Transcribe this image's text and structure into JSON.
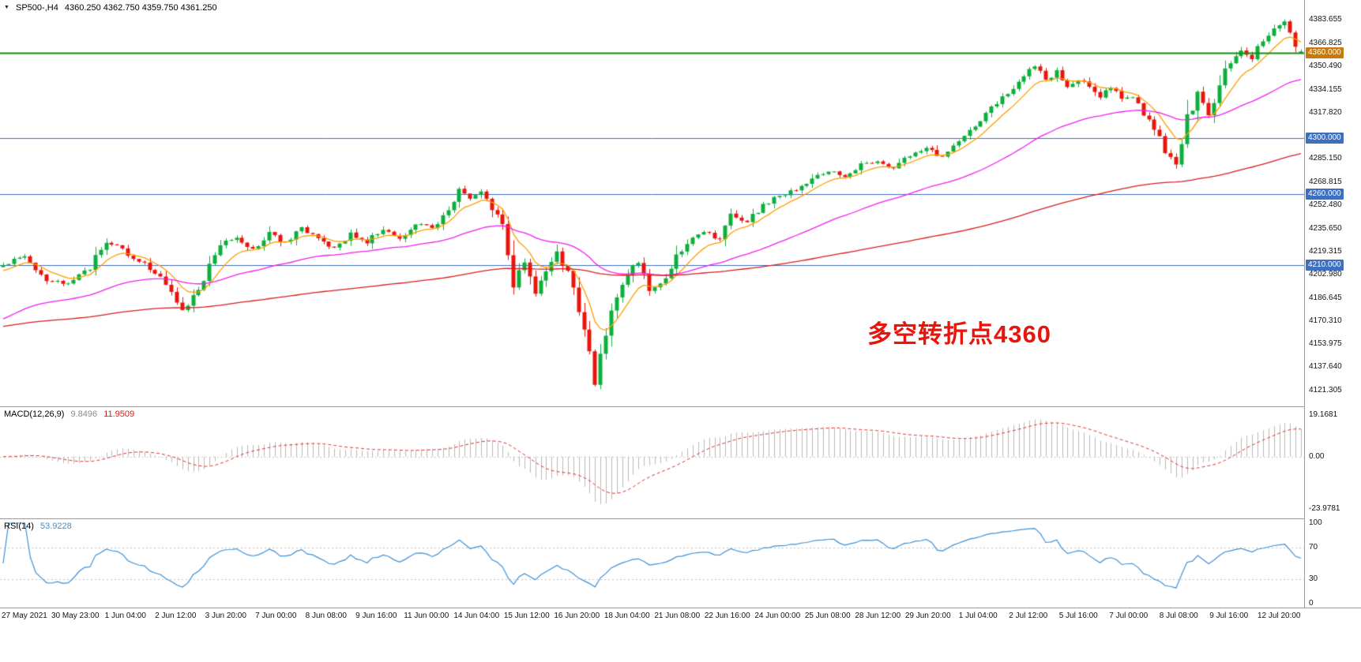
{
  "header": {
    "symbol": "SP500-,H4",
    "ohlc": "4360.250 4362.750 4359.750 4361.250"
  },
  "annotation": {
    "text": "多空转折点4360",
    "color": "#e8150d"
  },
  "price_axis": {
    "ticks": [
      {
        "text": "4383.655",
        "price": 4383.655
      },
      {
        "text": "4366.825",
        "price": 4366.825
      },
      {
        "text": "4350.490",
        "price": 4350.49
      },
      {
        "text": "4334.155",
        "price": 4334.155
      },
      {
        "text": "4317.820",
        "price": 4317.82
      },
      {
        "text": "4285.150",
        "price": 4285.15
      },
      {
        "text": "4268.815",
        "price": 4268.815
      },
      {
        "text": "4252.480",
        "price": 4252.48
      },
      {
        "text": "4235.650",
        "price": 4235.65
      },
      {
        "text": "4219.315",
        "price": 4219.315
      },
      {
        "text": "4202.980",
        "price": 4202.98
      },
      {
        "text": "4186.645",
        "price": 4186.645
      },
      {
        "text": "4170.310",
        "price": 4170.31
      },
      {
        "text": "4153.975",
        "price": 4153.975
      },
      {
        "text": "4137.640",
        "price": 4137.64
      },
      {
        "text": "4121.305",
        "price": 4121.305
      }
    ],
    "tags": [
      {
        "text": "4360.000",
        "price": 4360.0,
        "bg": "#c7790b"
      },
      {
        "text": "4300.000",
        "price": 4300.0,
        "bg": "#3f6fbf"
      },
      {
        "text": "4260.000",
        "price": 4260.0,
        "bg": "#3f6fbf"
      },
      {
        "text": "4210.000",
        "price": 4210.0,
        "bg": "#3f6fbf"
      }
    ]
  },
  "macd_panel": {
    "label": "MACD(12,26,9)",
    "value1": "9.8496",
    "value2": "11.9509",
    "ticks": [
      {
        "text": "19.1681",
        "value": 19.1681
      },
      {
        "text": "0.00",
        "value": 0
      },
      {
        "text": "-23.9781",
        "value": -23.9781
      }
    ]
  },
  "rsi_panel": {
    "label": "RSI(14)",
    "value": "53.9228",
    "ticks": [
      {
        "text": "100",
        "value": 100
      },
      {
        "text": "70",
        "value": 70
      },
      {
        "text": "30",
        "value": 30
      },
      {
        "text": "0",
        "value": 0
      }
    ]
  },
  "time_axis": {
    "labels": [
      "27 May 2021",
      "30 May 23:00",
      "1 Jun 04:00",
      "2 Jun 12:00",
      "3 Jun 20:00",
      "7 Jun 00:00",
      "8 Jun 08:00",
      "9 Jun 16:00",
      "11 Jun 00:00",
      "14 Jun 04:00",
      "15 Jun 12:00",
      "16 Jun 20:00",
      "18 Jun 04:00",
      "21 Jun 08:00",
      "22 Jun 16:00",
      "24 Jun 00:00",
      "25 Jun 08:00",
      "28 Jun 12:00",
      "29 Jun 20:00",
      "1 Jul 04:00",
      "2 Jul 12:00",
      "5 Jul 16:00",
      "7 Jul 00:00",
      "8 Jul 08:00",
      "9 Jul 16:00",
      "12 Jul 20:00"
    ]
  },
  "chart_data": {
    "type": "candlestick",
    "symbol": "SP500-",
    "timeframe": "H4",
    "title": "SP500-,H4 4360.250 4362.750 4359.750 4361.250",
    "bars": 240,
    "y_range": [
      4111,
      4396
    ],
    "current_ohlc": {
      "open": 4360.25,
      "high": 4362.75,
      "low": 4359.75,
      "close": 4361.25
    },
    "up_color": "#0caf3c",
    "down_color": "#e8150d",
    "horizontal_levels": [
      {
        "price": 4360.0,
        "color": "#0e8f0e",
        "width": 2
      },
      {
        "price": 4300.0,
        "color": "#3f6fbf",
        "width": 1
      },
      {
        "price": 4260.0,
        "color": "#3f6fbf",
        "width": 1
      },
      {
        "price": 4210.0,
        "color": "#3f6fbf",
        "width": 1
      }
    ],
    "close_path_anchors": [
      [
        0,
        4210
      ],
      [
        4,
        4216
      ],
      [
        8,
        4200
      ],
      [
        12,
        4197
      ],
      [
        16,
        4208
      ],
      [
        19,
        4228
      ],
      [
        23,
        4218
      ],
      [
        27,
        4208
      ],
      [
        30,
        4197
      ],
      [
        33,
        4176
      ],
      [
        36,
        4192
      ],
      [
        40,
        4226
      ],
      [
        43,
        4229
      ],
      [
        46,
        4221
      ],
      [
        49,
        4232
      ],
      [
        52,
        4226
      ],
      [
        55,
        4236
      ],
      [
        58,
        4228
      ],
      [
        61,
        4221
      ],
      [
        64,
        4233
      ],
      [
        67,
        4226
      ],
      [
        70,
        4237
      ],
      [
        73,
        4229
      ],
      [
        76,
        4240
      ],
      [
        79,
        4236
      ],
      [
        82,
        4248
      ],
      [
        84,
        4262
      ],
      [
        86,
        4255
      ],
      [
        88,
        4264
      ],
      [
        90,
        4250
      ],
      [
        92,
        4238
      ],
      [
        94,
        4198
      ],
      [
        96,
        4210
      ],
      [
        98,
        4190
      ],
      [
        100,
        4206
      ],
      [
        102,
        4218
      ],
      [
        104,
        4205
      ],
      [
        106,
        4178
      ],
      [
        108,
        4150
      ],
      [
        109,
        4128
      ],
      [
        111,
        4158
      ],
      [
        113,
        4190
      ],
      [
        115,
        4205
      ],
      [
        117,
        4212
      ],
      [
        119,
        4190
      ],
      [
        121,
        4196
      ],
      [
        123,
        4210
      ],
      [
        126,
        4224
      ],
      [
        129,
        4235
      ],
      [
        132,
        4228
      ],
      [
        134,
        4245
      ],
      [
        137,
        4241
      ],
      [
        140,
        4252
      ],
      [
        143,
        4259
      ],
      [
        146,
        4263
      ],
      [
        149,
        4271
      ],
      [
        152,
        4278
      ],
      [
        155,
        4272
      ],
      [
        158,
        4281
      ],
      [
        161,
        4283
      ],
      [
        164,
        4278
      ],
      [
        167,
        4288
      ],
      [
        170,
        4292
      ],
      [
        173,
        4287
      ],
      [
        176,
        4298
      ],
      [
        179,
        4308
      ],
      [
        182,
        4322
      ],
      [
        185,
        4331
      ],
      [
        188,
        4344
      ],
      [
        190,
        4352
      ],
      [
        192,
        4340
      ],
      [
        194,
        4348
      ],
      [
        196,
        4334
      ],
      [
        198,
        4342
      ],
      [
        200,
        4337
      ],
      [
        202,
        4330
      ],
      [
        204,
        4336
      ],
      [
        206,
        4328
      ],
      [
        208,
        4330
      ],
      [
        210,
        4318
      ],
      [
        212,
        4308
      ],
      [
        214,
        4290
      ],
      [
        216,
        4280
      ],
      [
        218,
        4312
      ],
      [
        220,
        4330
      ],
      [
        222,
        4317
      ],
      [
        224,
        4340
      ],
      [
        226,
        4353
      ],
      [
        228,
        4363
      ],
      [
        230,
        4356
      ],
      [
        232,
        4369
      ],
      [
        234,
        4377
      ],
      [
        236,
        4383
      ],
      [
        238,
        4367
      ],
      [
        239,
        4361.25
      ]
    ],
    "moving_averages": [
      {
        "name": "fast-ma",
        "color": "#ff9c00",
        "alpha": 0.22,
        "init": 4205
      },
      {
        "name": "mid-ma",
        "color": "#f01ef0",
        "alpha": 0.045,
        "init": 4170
      },
      {
        "name": "slow-ma",
        "color": "#d81e1e",
        "alpha": 0.012,
        "init": 4166
      }
    ],
    "indicators": {
      "macd": {
        "params": "12,26,9",
        "main": 9.8496,
        "signal": 11.9509,
        "range": [
          -27,
          21
        ],
        "hist_color": "#b8b8b8",
        "signal_color": "#e03030"
      },
      "rsi": {
        "period": 14,
        "value": 53.9228,
        "range": [
          0,
          100
        ],
        "levels": [
          30,
          70
        ],
        "color": "#3b8fd6"
      }
    }
  }
}
